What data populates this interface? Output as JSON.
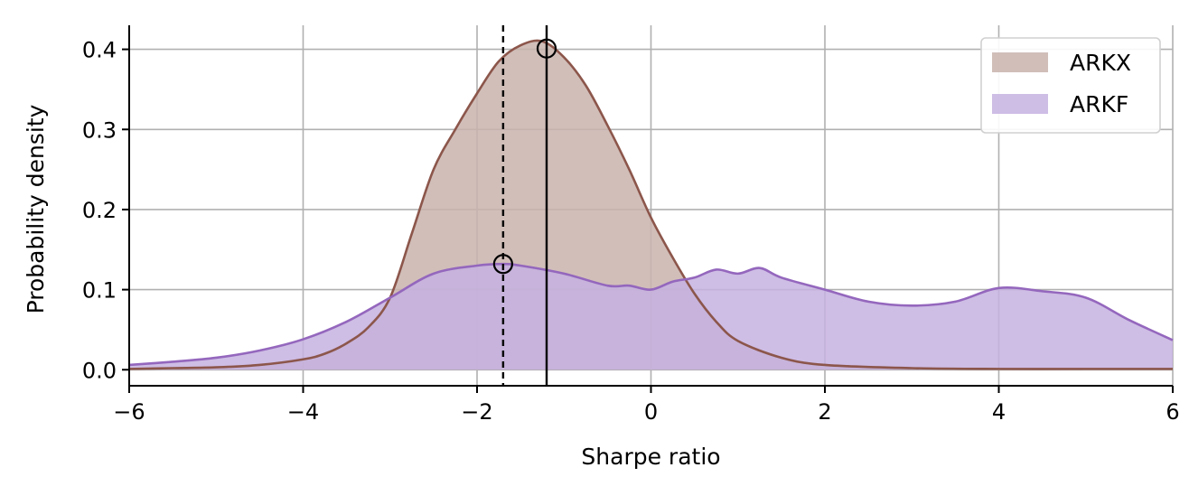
{
  "chart_data": {
    "type": "area",
    "xlabel": "Sharpe ratio",
    "ylabel": "Probability density",
    "xlim": [
      -6,
      6
    ],
    "ylim": [
      -0.02,
      0.43
    ],
    "xticks": [
      -6,
      -4,
      -2,
      0,
      2,
      4,
      6
    ],
    "xtick_labels": [
      "−6",
      "−4",
      "−2",
      "0",
      "2",
      "4",
      "6"
    ],
    "yticks": [
      0.0,
      0.1,
      0.2,
      0.3,
      0.4
    ],
    "ytick_labels": [
      "0.0",
      "0.1",
      "0.2",
      "0.3",
      "0.4"
    ],
    "grid": true,
    "legend": "top-right",
    "series": [
      {
        "name": "ARKX",
        "line_color": "#8c564b",
        "fill_color": "#c9b3ad",
        "x": [
          -6,
          -5.5,
          -5,
          -4.5,
          -4,
          -3.75,
          -3.5,
          -3.25,
          -3,
          -2.75,
          -2.5,
          -2.25,
          -2,
          -1.75,
          -1.5,
          -1.25,
          -1,
          -0.75,
          -0.5,
          -0.25,
          0,
          0.25,
          0.5,
          0.75,
          1,
          1.5,
          2,
          3,
          4,
          5,
          6
        ],
        "y": [
          0.001,
          0.002,
          0.003,
          0.006,
          0.013,
          0.02,
          0.033,
          0.053,
          0.09,
          0.17,
          0.25,
          0.3,
          0.345,
          0.385,
          0.405,
          0.41,
          0.39,
          0.355,
          0.305,
          0.25,
          0.19,
          0.14,
          0.095,
          0.06,
          0.036,
          0.015,
          0.006,
          0.002,
          0.001,
          0.001,
          0.001
        ]
      },
      {
        "name": "ARKF",
        "line_color": "#9467bd",
        "fill_color": "#c6b2e0",
        "x": [
          -6,
          -5.5,
          -5,
          -4.5,
          -4,
          -3.5,
          -3,
          -2.5,
          -2,
          -1.7,
          -1.5,
          -1,
          -0.5,
          -0.25,
          0,
          0.25,
          0.5,
          0.75,
          1,
          1.25,
          1.5,
          2,
          2.5,
          3,
          3.5,
          4,
          4.5,
          5,
          5.5,
          6
        ],
        "y": [
          0.006,
          0.01,
          0.015,
          0.024,
          0.038,
          0.06,
          0.09,
          0.12,
          0.13,
          0.132,
          0.13,
          0.12,
          0.105,
          0.105,
          0.1,
          0.11,
          0.115,
          0.125,
          0.12,
          0.127,
          0.115,
          0.1,
          0.085,
          0.08,
          0.085,
          0.102,
          0.098,
          0.09,
          0.062,
          0.037
        ]
      }
    ],
    "vlines": [
      {
        "x": -1.2,
        "style": "solid"
      },
      {
        "x": -1.7,
        "style": "dashed"
      }
    ],
    "markers": [
      {
        "x": -1.2,
        "y": 0.401
      },
      {
        "x": -1.7,
        "y": 0.132
      }
    ]
  }
}
